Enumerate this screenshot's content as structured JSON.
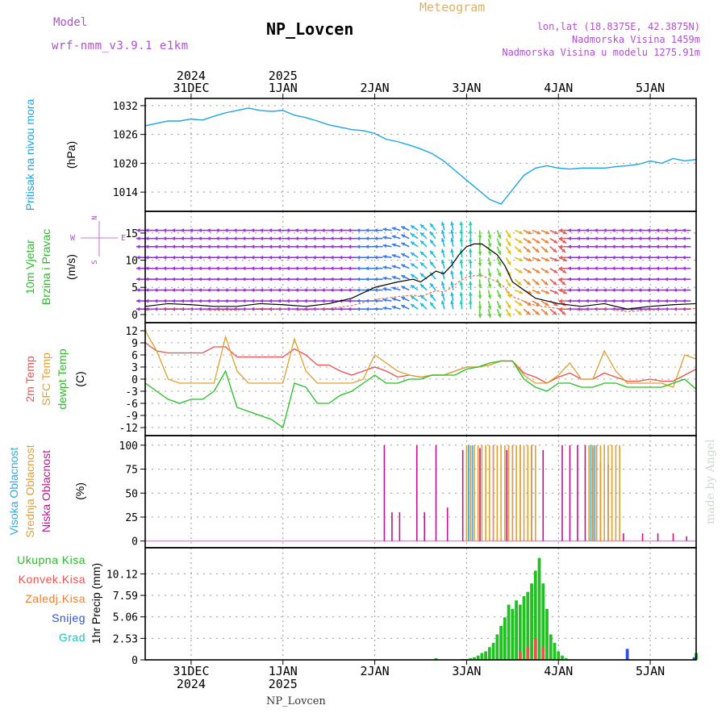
{
  "header": {
    "model_label": "Model",
    "model_name": "wrf-nmm_v3.9.1 e1km",
    "title": "NP_Lovcen",
    "subtitle": "Meteogram",
    "lonlat": "lon,lat (18.8375E, 42.3875N)",
    "altitude": "Nadmorska Visina 1459m",
    "model_altitude": "Nadmorska Visina u modelu 1275.91m"
  },
  "footer": {
    "station": "NP_Lovcen"
  },
  "watermark": "made by Angel",
  "colors": {
    "pressure": "#1aa5e6",
    "temp": "#ec5050",
    "sfc_temp": "#e0a030",
    "dewpt": "#22c022",
    "high_cloud": "#30a8e0",
    "mid_cloud": "#e0a030",
    "low_cloud": "#c0148c",
    "total_precip": "#22c022",
    "conv_precip": "#ec5050",
    "frz_precip": "#f08030",
    "snow": "#3050e0",
    "graupel": "#20c0c0",
    "label_purple": "#b050d0",
    "label_gold": "#e0b060"
  },
  "chart_data": [
    {
      "id": "pressure",
      "type": "line",
      "ylabel": [
        "Pritisak na nivou mora",
        "(hPa)"
      ],
      "yticks": [
        1014,
        1020,
        1026,
        1032
      ],
      "ylim": [
        1010,
        1033.5
      ],
      "x": [
        0,
        3,
        6,
        9,
        12,
        15,
        18,
        21,
        24,
        27,
        30,
        33,
        36,
        39,
        42,
        45,
        48,
        51,
        54,
        57,
        60,
        63,
        66,
        69,
        72,
        75,
        78,
        81,
        84,
        87,
        90,
        93,
        96,
        99,
        102,
        105,
        108,
        111,
        114,
        117,
        120,
        123,
        126,
        129,
        132,
        135,
        138,
        141,
        144
      ],
      "series": [
        {
          "values": [
            1027.8,
            1028.3,
            1028.8,
            1028.8,
            1029.2,
            1029.0,
            1029.8,
            1030.5,
            1031.0,
            1031.5,
            1031.0,
            1030.8,
            1031.0,
            1030.0,
            1029.5,
            1028.8,
            1028.0,
            1027.5,
            1027.0,
            1026.8,
            1026.2,
            1025.0,
            1024.5,
            1023.8,
            1023.0,
            1022.0,
            1020.5,
            1018.5,
            1016.5,
            1014.5,
            1012.5,
            1011.5,
            1014.5,
            1017.5,
            1019.0,
            1019.5,
            1019.0,
            1018.8,
            1019.0,
            1019.0,
            1019.0,
            1019.3,
            1019.5,
            1019.8,
            1020.5,
            1020.0,
            1021.0,
            1020.5,
            1020.8
          ]
        }
      ]
    },
    {
      "id": "wind",
      "type": "line",
      "ylabel": [
        "10m Vjetar",
        "Brzina i Pravac",
        "(m/s)"
      ],
      "compass": {
        "north": "N",
        "south": "S",
        "west": "W",
        "east": "E"
      },
      "yticks": [
        0,
        5,
        10,
        15
      ],
      "ylim": [
        -1.5,
        19
      ],
      "x": [
        0,
        6,
        12,
        18,
        24,
        30,
        36,
        42,
        48,
        54,
        60,
        66,
        70,
        72,
        74,
        76,
        78,
        80,
        82,
        84,
        86,
        88,
        90,
        92,
        94,
        96,
        102,
        108,
        114,
        120,
        126,
        132,
        138,
        144
      ],
      "series": [
        {
          "values": [
            1.5,
            2.0,
            1.8,
            1.5,
            1.5,
            2.0,
            1.8,
            1.5,
            2.0,
            3.0,
            5.0,
            6.0,
            6.5,
            6.0,
            7.0,
            8.0,
            7.5,
            9.0,
            11.0,
            12.5,
            13.0,
            13.0,
            12.0,
            11.0,
            9.0,
            6.0,
            3.0,
            2.0,
            1.5,
            2.0,
            1.0,
            1.5,
            1.8,
            2.0
          ]
        }
      ],
      "arrow_rows": [
        15.5,
        14.0,
        12.5,
        10.5,
        8.5,
        6.5,
        4.5,
        2.5,
        1.0
      ]
    },
    {
      "id": "temperature",
      "type": "line",
      "ylabel": [
        "2m Temp",
        "SFC Temp",
        "dewpt Temp",
        "(C)"
      ],
      "yticks": [
        -12,
        -9,
        -6,
        -3,
        0,
        3,
        6,
        9,
        12
      ],
      "ylim": [
        -14,
        14
      ],
      "x": [
        0,
        3,
        6,
        9,
        12,
        15,
        18,
        21,
        24,
        27,
        30,
        33,
        36,
        39,
        42,
        45,
        48,
        51,
        54,
        57,
        60,
        63,
        66,
        69,
        72,
        75,
        78,
        81,
        84,
        87,
        90,
        93,
        96,
        99,
        102,
        105,
        108,
        111,
        114,
        117,
        120,
        123,
        126,
        129,
        132,
        135,
        138,
        141,
        144
      ],
      "series": [
        {
          "name": "2m Temp",
          "values": [
            9,
            7,
            6.5,
            6.5,
            6.5,
            6.5,
            8,
            8,
            5.5,
            5.5,
            5.5,
            5.5,
            5.5,
            7.5,
            6,
            3.5,
            3.5,
            2,
            1,
            2,
            3,
            2,
            0.5,
            1,
            0.5,
            1,
            1,
            2,
            3,
            3,
            3.5,
            4.5,
            4.5,
            1.5,
            0.5,
            -1,
            0.5,
            1.5,
            0,
            0,
            1.5,
            0.5,
            -0.5,
            -0.5,
            0,
            -0.5,
            -0.5,
            1,
            2.5
          ]
        },
        {
          "name": "SFC Temp",
          "values": [
            12,
            7,
            0,
            -1,
            -1,
            -1,
            -1,
            10.5,
            2,
            -1,
            -1,
            -1,
            -1,
            10,
            2,
            -1,
            -1,
            -1,
            -1,
            0,
            6,
            4,
            2,
            1,
            0.5,
            1,
            1,
            2,
            3,
            3,
            3.5,
            4.5,
            4.5,
            1,
            -1,
            -1,
            1,
            4,
            0,
            0,
            7,
            2,
            -1,
            -1,
            -1,
            -1,
            -2,
            6,
            5
          ]
        },
        {
          "name": "dewpt Temp",
          "values": [
            -1,
            -3,
            -5,
            -6,
            -5,
            -5,
            -3,
            2,
            -7,
            -8,
            -9,
            -10,
            -12,
            -1,
            -2,
            -6,
            -6,
            -4,
            -3,
            -1,
            1,
            -1,
            -1,
            0,
            0,
            1,
            1,
            1,
            2.5,
            3,
            4,
            4.5,
            4.5,
            0,
            -2,
            -3,
            -1,
            -1,
            -2,
            -2,
            -1,
            -1,
            -2,
            -2,
            -2,
            -2,
            -1,
            0,
            -2.5
          ]
        }
      ]
    },
    {
      "id": "cloud",
      "type": "bar",
      "ylabel": [
        "Visoka Oblacnost",
        "Srednja Oblacnost",
        "Niska Oblacnost",
        "(%)"
      ],
      "yticks": [
        0,
        25,
        50,
        75,
        100
      ],
      "ylim": [
        -7,
        110
      ],
      "series": [
        {
          "name": "Niska Oblacnost",
          "x": [
            62.5,
            64.5,
            66.5,
            71,
            73,
            76,
            79,
            83,
            87.5,
            91,
            94.5,
            96,
            98,
            101,
            104,
            109,
            111,
            113,
            115,
            117,
            119,
            121,
            125,
            130,
            134,
            138,
            141.5
          ],
          "values": [
            100,
            30,
            30,
            100,
            30,
            100,
            35,
            95,
            97,
            100,
            95,
            100,
            100,
            100,
            95,
            100,
            100,
            100,
            100,
            97,
            82,
            80,
            8,
            8,
            8,
            8,
            5
          ]
        },
        {
          "name": "Srednja Oblacnost",
          "x": [
            84,
            85,
            86,
            87,
            88,
            89,
            90,
            91,
            92,
            93,
            94,
            95,
            96,
            97,
            98,
            99,
            100,
            101,
            102,
            116,
            117,
            118,
            119,
            120,
            121,
            122,
            123,
            124
          ],
          "values": [
            100,
            100,
            100,
            100,
            100,
            100,
            100,
            100,
            100,
            100,
            100,
            100,
            100,
            100,
            100,
            100,
            100,
            100,
            100,
            100,
            100,
            100,
            100,
            100,
            100,
            100,
            100,
            100
          ]
        },
        {
          "name": "Visoka Oblacnost",
          "x": [
            84.5,
            85.5,
            116.5,
            117.5
          ],
          "values": [
            100,
            100,
            100,
            100
          ]
        }
      ]
    },
    {
      "id": "precip",
      "type": "bar",
      "ylabel": [
        "1hr Precip (mm)"
      ],
      "legend": [
        "Ukupna Kisa",
        "Konvek.Kisa",
        "Zaledj.Kisa",
        "Snijeg",
        "Grad"
      ],
      "yticks": [
        0,
        2.53,
        5.06,
        7.59,
        10.12
      ],
      "ylim": [
        0,
        13.2
      ],
      "series": [
        {
          "name": "Ukupna Kisa",
          "x": [
            72,
            73,
            74,
            75,
            76,
            77,
            78,
            79,
            80,
            81,
            82,
            83,
            84,
            85,
            86,
            87,
            88,
            89,
            90,
            91,
            92,
            93,
            94,
            95,
            96,
            97,
            98,
            99,
            100,
            101,
            102,
            103,
            104,
            105,
            106,
            107,
            108,
            109,
            110,
            111,
            112,
            113,
            114,
            115,
            116,
            117,
            118,
            119,
            120,
            121,
            122,
            123,
            124,
            125,
            126,
            127,
            128,
            129,
            130,
            131,
            132,
            133,
            134,
            135,
            136,
            137,
            138,
            139,
            140,
            141,
            142,
            143,
            144
          ],
          "values": [
            0,
            0,
            0,
            0,
            0.2,
            0,
            0,
            0,
            0,
            0,
            0,
            0.1,
            0.1,
            0.2,
            0.3,
            0.5,
            0.8,
            1.0,
            1.5,
            2.0,
            3.0,
            4.0,
            5.0,
            6.5,
            6.0,
            7.0,
            6.5,
            7.5,
            8.0,
            9.0,
            10.5,
            12.0,
            9.0,
            6.0,
            3.0,
            2.0,
            1.0,
            0.5,
            0.2,
            0,
            0,
            0,
            0,
            0,
            0,
            0,
            0,
            0,
            0,
            0,
            0,
            0,
            0,
            0,
            0,
            0,
            0,
            0,
            0,
            0,
            0,
            0,
            0,
            0,
            0,
            0,
            0,
            0,
            0,
            0,
            0,
            0,
            0.8
          ]
        },
        {
          "name": "Konvek.Kisa",
          "x": [
            98,
            100,
            102,
            104
          ],
          "values": [
            1.0,
            1.5,
            2.5,
            1.5
          ]
        },
        {
          "name": "Snijeg",
          "x": [
            126,
            143.5
          ],
          "values": [
            1.3,
            0.3
          ]
        }
      ]
    }
  ],
  "time_axis": {
    "range_hours": [
      0,
      144
    ],
    "top": [
      {
        "x": 12,
        "day": "31DEC",
        "year": "2024"
      },
      {
        "x": 36,
        "day": "1JAN",
        "year": "2025"
      },
      {
        "x": 60,
        "day": "2JAN",
        "year": ""
      },
      {
        "x": 84,
        "day": "3JAN",
        "year": ""
      },
      {
        "x": 108,
        "day": "4JAN",
        "year": ""
      },
      {
        "x": 132,
        "day": "5JAN",
        "year": ""
      }
    ],
    "bottom": [
      {
        "x": 12,
        "day": "31DEC",
        "year": "2024"
      },
      {
        "x": 36,
        "day": "1JAN",
        "year": "2025"
      },
      {
        "x": 60,
        "day": "2JAN",
        "year": ""
      },
      {
        "x": 84,
        "day": "3JAN",
        "year": ""
      },
      {
        "x": 108,
        "day": "4JAN",
        "year": ""
      },
      {
        "x": 132,
        "day": "5JAN",
        "year": ""
      }
    ]
  }
}
